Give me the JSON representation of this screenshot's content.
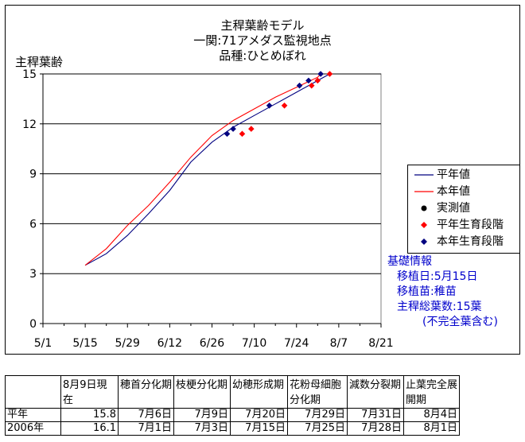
{
  "chart_data": {
    "type": "line",
    "title_lines": [
      "主稈葉齢モデル",
      "一関:71アメダス監視地点",
      "品種:ひとめぼれ"
    ],
    "ylabel": "主稈葉齢",
    "xlabel": "",
    "x_ticks": [
      "5/1",
      "5/15",
      "5/29",
      "6/12",
      "6/26",
      "7/10",
      "7/24",
      "8/7",
      "8/21"
    ],
    "y_ticks": [
      "0",
      "3",
      "6",
      "9",
      "12",
      "15"
    ],
    "xlim": [
      "5/1",
      "8/21"
    ],
    "ylim": [
      0,
      15
    ],
    "grid": "horizontal",
    "legend_position": "right",
    "series": [
      {
        "name": "平年値",
        "kind": "line",
        "color": "#000080",
        "points": [
          [
            "5/15",
            3.5
          ],
          [
            "5/22",
            4.2
          ],
          [
            "5/29",
            5.3
          ],
          [
            "6/5",
            6.6
          ],
          [
            "6/12",
            8.0
          ],
          [
            "6/19",
            9.7
          ],
          [
            "6/26",
            10.9
          ],
          [
            "7/3",
            11.8
          ],
          [
            "7/10",
            12.5
          ],
          [
            "7/17",
            13.2
          ],
          [
            "7/24",
            13.9
          ],
          [
            "7/31",
            14.6
          ],
          [
            "8/4",
            15.0
          ]
        ]
      },
      {
        "name": "本年値",
        "kind": "line",
        "color": "#ff0000",
        "points": [
          [
            "5/15",
            3.5
          ],
          [
            "5/22",
            4.5
          ],
          [
            "5/29",
            5.9
          ],
          [
            "6/5",
            7.1
          ],
          [
            "6/12",
            8.5
          ],
          [
            "6/19",
            10.0
          ],
          [
            "6/26",
            11.3
          ],
          [
            "7/3",
            12.2
          ],
          [
            "7/10",
            12.9
          ],
          [
            "7/17",
            13.6
          ],
          [
            "7/24",
            14.2
          ],
          [
            "7/31",
            14.8
          ],
          [
            "8/1",
            15.0
          ]
        ]
      },
      {
        "name": "実測値",
        "kind": "marker-circle",
        "color": "#000000",
        "points": []
      },
      {
        "name": "平年生育段階",
        "kind": "marker-diamond",
        "color": "#ff0000",
        "points": [
          [
            "7/6",
            11.4
          ],
          [
            "7/9",
            11.7
          ],
          [
            "7/20",
            13.1
          ],
          [
            "7/29",
            14.3
          ],
          [
            "7/31",
            14.6
          ],
          [
            "8/4",
            15.0
          ]
        ]
      },
      {
        "name": "本年生育段階",
        "kind": "marker-diamond",
        "color": "#000080",
        "points": [
          [
            "7/1",
            11.4
          ],
          [
            "7/3",
            11.7
          ],
          [
            "7/15",
            13.1
          ],
          [
            "7/25",
            14.3
          ],
          [
            "7/28",
            14.6
          ],
          [
            "8/1",
            15.0
          ]
        ]
      }
    ]
  },
  "info": {
    "heading": "基礎情報",
    "lines": [
      "移植日:5月15日",
      "移植苗:稚苗",
      "主稈総葉数:15葉",
      "(不完全葉含む)"
    ]
  },
  "table": {
    "headers": [
      "",
      "8月9日現在",
      "穂首分化期",
      "枝梗分化期",
      "幼穂形成期",
      "花粉母細胞分化期",
      "減数分裂期",
      "止葉完全展開期"
    ],
    "rows": [
      [
        "平年",
        "15.8",
        "7月6日",
        "7月9日",
        "7月20日",
        "7月29日",
        "7月31日",
        "8月4日"
      ],
      [
        "2006年",
        "16.1",
        "7月1日",
        "7月3日",
        "7月15日",
        "7月25日",
        "7月28日",
        "8月1日"
      ]
    ]
  }
}
